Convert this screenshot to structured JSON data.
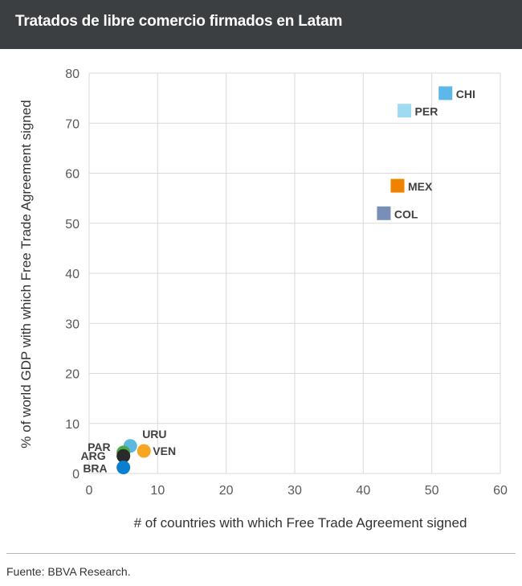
{
  "header": {
    "title": "Tratados de libre comercio firmados en Latam"
  },
  "footer": {
    "source": "Fuente: BBVA Research."
  },
  "colors": {
    "header_bg": "#3c3f41",
    "grid": "#d9d9d9",
    "axis_text": "#595959",
    "point_label": "#404040"
  },
  "chart_data": {
    "type": "scatter",
    "title": "",
    "xlabel": "# of countries with which Free Trade Agreement signed",
    "ylabel": "% of world GDP with which Free Trade Agreement  signed",
    "xlim": [
      0,
      60
    ],
    "ylim": [
      0,
      80
    ],
    "x_ticks": [
      "0",
      "10",
      "20",
      "30",
      "40",
      "50",
      "60"
    ],
    "y_ticks": [
      "0",
      "10",
      "20",
      "30",
      "40",
      "50",
      "60",
      "70",
      "80"
    ],
    "grid": true,
    "legend": "none",
    "points": [
      {
        "label": "CHI",
        "x": 52,
        "y": 76,
        "marker": "square",
        "color": "#5bb8e8"
      },
      {
        "label": "PER",
        "x": 46,
        "y": 72.5,
        "marker": "square",
        "color": "#9fdaf3"
      },
      {
        "label": "MEX",
        "x": 45,
        "y": 57.5,
        "marker": "square",
        "color": "#f08200"
      },
      {
        "label": "COL",
        "x": 43,
        "y": 52,
        "marker": "square",
        "color": "#7a8fb8"
      },
      {
        "label": "URU",
        "x": 6,
        "y": 5.5,
        "marker": "circle",
        "color": "#5cb8de"
      },
      {
        "label": "VEN",
        "x": 8,
        "y": 4.5,
        "marker": "circle",
        "color": "#f5a623"
      },
      {
        "label": "PAR",
        "x": 5,
        "y": 4.2,
        "marker": "circle",
        "color": "#49a942"
      },
      {
        "label": "ARG",
        "x": 5,
        "y": 3.5,
        "marker": "circle",
        "color": "#2a2a2a"
      },
      {
        "label": "BRA",
        "x": 5,
        "y": 1.2,
        "marker": "circle",
        "color": "#0a7fcf"
      }
    ]
  }
}
